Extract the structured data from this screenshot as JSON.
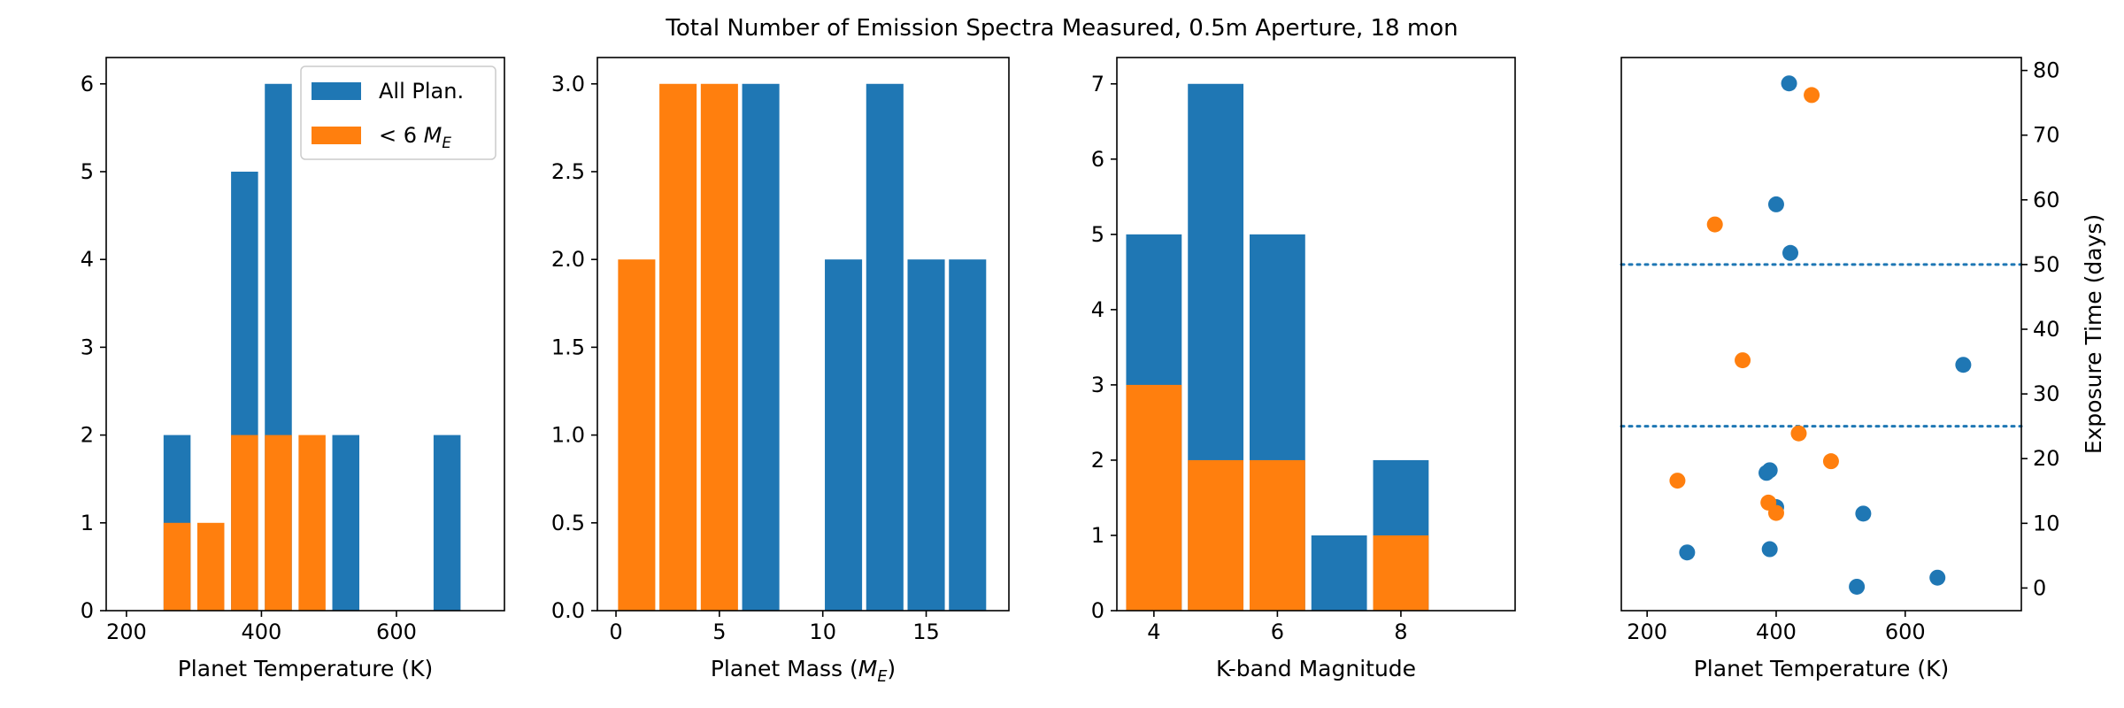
{
  "figure_title": "Total Number of Emission Spectra Measured, 0.5m Aperture, 18 mon",
  "colors": {
    "blue": "#1f77b4",
    "orange": "#ff7f0e"
  },
  "chart_data": [
    {
      "type": "bar",
      "xlabel": "Planet Temperature (K)",
      "ylabel": "",
      "xlim": [
        170,
        760
      ],
      "ylim": [
        0,
        6.3
      ],
      "xticks": [
        200,
        400,
        600
      ],
      "yticks": [
        0,
        1,
        2,
        3,
        4,
        5,
        6
      ],
      "bar_width": 40,
      "legend": {
        "position": "top-right",
        "entries": [
          "All Plan.",
          "< 6 ME"
        ]
      },
      "series": [
        {
          "name": "All Plan.",
          "color": "#1f77b4",
          "x": [
            275,
            375,
            425,
            525,
            675
          ],
          "values": [
            2,
            5,
            6,
            2,
            2
          ]
        },
        {
          "name": "< 6 ME",
          "color": "#ff7f0e",
          "x": [
            275,
            325,
            375,
            425,
            475
          ],
          "values": [
            1,
            1,
            2,
            2,
            2
          ]
        }
      ]
    },
    {
      "type": "bar",
      "xlabel": "Planet Mass (ME)",
      "ylabel": "",
      "xlim": [
        -0.9,
        19
      ],
      "ylim": [
        0,
        3.15
      ],
      "xticks": [
        0,
        5,
        10,
        15
      ],
      "yticks": [
        0,
        0.5,
        1.0,
        1.5,
        2.0,
        2.5,
        3.0
      ],
      "ytick_labels": [
        "0.0",
        "0.5",
        "1.0",
        "1.5",
        "2.0",
        "2.5",
        "3.0"
      ],
      "bar_width": 1.8,
      "series": [
        {
          "name": "All Plan.",
          "color": "#1f77b4",
          "x": [
            7,
            11,
            13,
            15,
            17
          ],
          "values": [
            3,
            2,
            3,
            2,
            2
          ]
        },
        {
          "name": "< 6 ME",
          "color": "#ff7f0e",
          "x": [
            1,
            3,
            5
          ],
          "values": [
            2,
            3,
            3
          ]
        }
      ]
    },
    {
      "type": "bar",
      "xlabel": "K-band Magnitude",
      "ylabel": "",
      "xlim": [
        3.4,
        9.85
      ],
      "ylim": [
        0,
        7.35
      ],
      "xticks": [
        4,
        6,
        8
      ],
      "yticks": [
        0,
        1,
        2,
        3,
        4,
        5,
        6,
        7
      ],
      "bar_width": 0.9,
      "series": [
        {
          "name": "All Plan.",
          "color": "#1f77b4",
          "x": [
            4,
            5,
            6,
            7,
            8
          ],
          "values": [
            5,
            7,
            5,
            1,
            2
          ]
        },
        {
          "name": "< 6 ME",
          "color": "#ff7f0e",
          "x": [
            4,
            5,
            6,
            8
          ],
          "values": [
            3,
            2,
            2,
            1
          ]
        }
      ]
    },
    {
      "type": "scatter",
      "xlabel": "Planet Temperature (K)",
      "ylabel": "Exposure Time (days)",
      "y_axis_side": "right",
      "xlim": [
        160,
        780
      ],
      "ylim": [
        -3.5,
        82
      ],
      "xticks": [
        200,
        400,
        600
      ],
      "yticks": [
        0,
        10,
        20,
        30,
        40,
        50,
        60,
        70,
        80
      ],
      "hlines": [
        50,
        25
      ],
      "series": [
        {
          "name": "All Plan.",
          "color": "#1f77b4",
          "points": [
            [
              420,
              78
            ],
            [
              400,
              59.3
            ],
            [
              422,
              51.8
            ],
            [
              690,
              34.5
            ],
            [
              385,
              17.8
            ],
            [
              390,
              18.2
            ],
            [
              400,
              12.5
            ],
            [
              535,
              11.5
            ],
            [
              262,
              5.5
            ],
            [
              390,
              6
            ],
            [
              525,
              0.2
            ],
            [
              650,
              1.6
            ]
          ]
        },
        {
          "name": "< 6 ME",
          "color": "#ff7f0e",
          "points": [
            [
              455,
              76.2
            ],
            [
              305,
              56.2
            ],
            [
              348,
              35.2
            ],
            [
              435,
              23.9
            ],
            [
              485,
              19.6
            ],
            [
              247,
              16.6
            ],
            [
              388,
              13.2
            ],
            [
              400,
              11.6
            ]
          ]
        }
      ]
    }
  ]
}
